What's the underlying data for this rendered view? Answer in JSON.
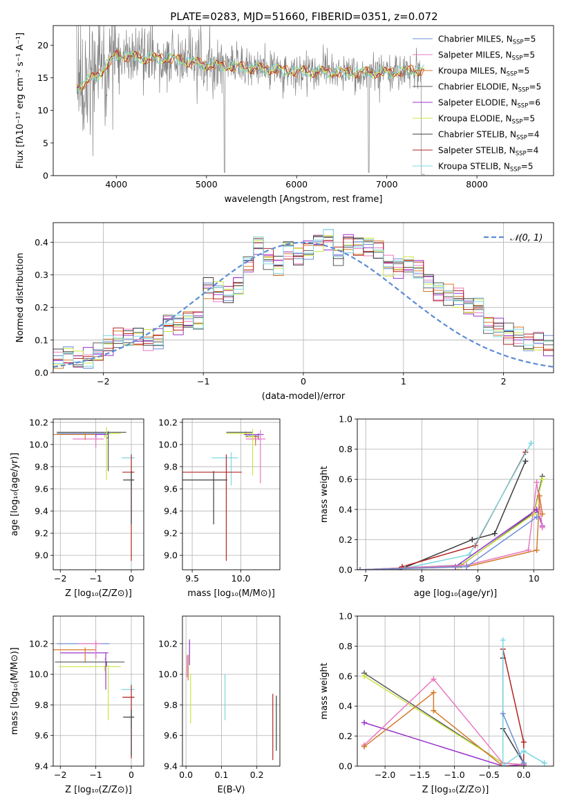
{
  "title": "PLATE=0283, MJD=51660, FIBERID=0351, z=0.072",
  "colors": {
    "chabrier_miles": "#6b8ed6",
    "salpeter_miles": "#e878c0",
    "kroupa_miles": "#d47a2a",
    "chabrier_elodie": "#5a5a5a",
    "salpeter_elodie": "#9932cc",
    "kroupa_elodie": "#c8e640",
    "chabrier_stelib": "#3c3c3c",
    "salpeter_stelib": "#b22222",
    "kroupa_stelib": "#7ad8e0",
    "data_grey": "#808080",
    "normal_curve": "#5b8bd6"
  },
  "chart_data": [
    {
      "id": "spectrum",
      "type": "line",
      "xlabel": "wavelength [Angstrom, rest frame]",
      "ylabel": "Flux [fλ10⁻¹⁷ erg cm⁻² s⁻¹ A⁻¹]",
      "xlim": [
        3300,
        8850
      ],
      "ylim": [
        0,
        23
      ],
      "xticks": [
        "4000",
        "5000",
        "6000",
        "7000",
        "8000"
      ],
      "yticks": [
        "0",
        "5",
        "10",
        "15",
        "20"
      ],
      "legend": [
        "Chabrier MILES, N_SSP=5",
        "Salpeter MILES, N_SSP=5",
        "Kroupa MILES, N_SSP=5",
        "Chabrier ELODIE, N_SSP=5",
        "Salpeter ELODIE, N_SSP=6",
        "Kroupa ELODIE, N_SSP=5",
        "Chabrier STELIB, N_SSP=4",
        "Salpeter STELIB, N_SSP=4",
        "Kroupa STELIB, N_SSP=5"
      ],
      "legend_placement": "right",
      "data_range": [
        3560,
        7420
      ],
      "model_trend": [
        [
          3560,
          13.5
        ],
        [
          3800,
          15.5
        ],
        [
          4000,
          18.5
        ],
        [
          4300,
          18
        ],
        [
          4600,
          18
        ],
        [
          5000,
          17
        ],
        [
          5500,
          16.5
        ],
        [
          6000,
          16
        ],
        [
          6500,
          15.8
        ],
        [
          7000,
          15.8
        ],
        [
          7400,
          16.2
        ]
      ]
    },
    {
      "id": "residuals",
      "type": "bar",
      "xlabel": "(data-model)/error",
      "ylabel": "Normed distribution",
      "xlim": [
        -2.5,
        2.5
      ],
      "ylim": [
        0,
        0.46
      ],
      "xticks": [
        "−2",
        "−1",
        "0",
        "1",
        "2"
      ],
      "yticks": [
        "0.0",
        "0.1",
        "0.2",
        "0.3",
        "0.4"
      ],
      "legend": [
        "𝒩(0, 1)"
      ],
      "legend_placement": "top-right",
      "bin_width": 0.1,
      "base_hist": [
        0.04,
        0.05,
        0.04,
        0.045,
        0.06,
        0.08,
        0.105,
        0.105,
        0.11,
        0.1,
        0.105,
        0.155,
        0.145,
        0.16,
        0.16,
        0.26,
        0.25,
        0.245,
        0.27,
        0.33,
        0.39,
        0.35,
        0.33,
        0.38,
        0.36,
        0.38,
        0.4,
        0.41,
        0.36,
        0.4,
        0.39,
        0.39,
        0.38,
        0.33,
        0.32,
        0.33,
        0.32,
        0.28,
        0.25,
        0.24,
        0.23,
        0.2,
        0.2,
        0.15,
        0.14,
        0.12,
        0.11,
        0.09,
        0.095,
        0.08
      ]
    },
    {
      "id": "age-vs-Z",
      "type": "scatter",
      "xlabel": "Z [log₁₀(Z/Z⊙)]",
      "ylabel": "age  [log₁₀(age/yr)]",
      "xlim": [
        -2.2,
        0.35
      ],
      "ylim": [
        8.87,
        10.23
      ],
      "xticks": [
        "−2",
        "−1",
        "0"
      ],
      "yticks": [
        "9.0",
        "9.2",
        "9.4",
        "9.6",
        "9.8",
        "10.0",
        "10.2"
      ],
      "points": [
        {
          "x": -0.65,
          "xerr": 1.45,
          "y": 10.11,
          "yerr": 0.04,
          "c": "chabrier_elodie"
        },
        {
          "x": -0.75,
          "xerr": 1.3,
          "y": 10.1,
          "yerr": 0.04,
          "c": "kroupa_elodie"
        },
        {
          "x": -1.0,
          "xerr": 1.1,
          "y": 10.1,
          "yerr": 0.03,
          "c": "chabrier_miles"
        },
        {
          "x": -1.0,
          "xerr": 1.0,
          "y": 10.09,
          "yerr": 0.05,
          "c": "salpeter_elodie"
        },
        {
          "x": -1.3,
          "xerr": 0.9,
          "y": 10.09,
          "yerr": 0.05,
          "c": "kroupa_miles"
        },
        {
          "x": -1.0,
          "xerr": 0.65,
          "y": 10.05,
          "yerr": 0.08,
          "c": "salpeter_miles"
        },
        {
          "x": -0.7,
          "xerr": 0.05,
          "y": 10.08,
          "yerr": 0.4,
          "c": "kroupa_elodie"
        },
        {
          "x": -0.65,
          "xerr": 0.05,
          "y": 10.06,
          "yerr": 0.3,
          "c": "chabrier_elodie"
        },
        {
          "x": 0.0,
          "xerr": 0.28,
          "y": 9.88,
          "yerr": 0.25,
          "c": "kroupa_stelib"
        },
        {
          "x": 0.0,
          "xerr": 0.25,
          "y": 9.75,
          "yerr": 0.8,
          "c": "salpeter_stelib"
        },
        {
          "x": 0.0,
          "xerr": 0.23,
          "y": 9.68,
          "yerr": 0.4,
          "c": "chabrier_stelib"
        }
      ]
    },
    {
      "id": "age-vs-mass",
      "type": "scatter",
      "xlabel": "mass [log₁₀(M/M⊙)]",
      "ylabel": "",
      "xlim": [
        9.4,
        10.4
      ],
      "ylim": [
        8.87,
        10.23
      ],
      "xticks": [
        "9.5",
        "10.0"
      ],
      "yticks": [
        "9.0",
        "9.2",
        "9.4",
        "9.6",
        "9.8",
        "10.0",
        "10.2"
      ],
      "points": [
        {
          "x": 10.05,
          "xerr": 0.2,
          "y": 10.11,
          "yerr": 0.03,
          "c": "chabrier_elodie"
        },
        {
          "x": 10.05,
          "xerr": 0.2,
          "y": 10.1,
          "yerr": 0.03,
          "c": "kroupa_elodie"
        },
        {
          "x": 10.18,
          "xerr": 0.15,
          "y": 10.09,
          "yerr": 0.05,
          "c": "salpeter_elodie"
        },
        {
          "x": 10.15,
          "xerr": 0.1,
          "y": 10.08,
          "yerr": 0.06,
          "c": "chabrier_miles"
        },
        {
          "x": 10.15,
          "xerr": 0.1,
          "y": 10.07,
          "yerr": 0.08,
          "c": "kroupa_miles"
        },
        {
          "x": 10.2,
          "xerr": 0.15,
          "y": 10.05,
          "yerr": 0.4,
          "c": "salpeter_miles"
        },
        {
          "x": 10.12,
          "xerr": 0.05,
          "y": 10.07,
          "yerr": 0.35,
          "c": "kroupa_elodie"
        },
        {
          "x": 9.9,
          "xerr": 0.2,
          "y": 9.88,
          "yerr": 0.25,
          "c": "kroupa_stelib"
        },
        {
          "x": 9.85,
          "xerr": 0.45,
          "y": 9.75,
          "yerr": 0.8,
          "c": "salpeter_stelib"
        },
        {
          "x": 9.72,
          "xerr": 0.4,
          "y": 9.68,
          "yerr": 0.4,
          "c": "chabrier_stelib"
        }
      ]
    },
    {
      "id": "massweight-vs-age",
      "type": "line",
      "xlabel": "age  [log₁₀(age/yr)]",
      "ylabel": "mass weight",
      "xlim": [
        6.85,
        10.35
      ],
      "ylim": [
        0,
        1
      ],
      "xticks": [
        "7",
        "8",
        "9",
        "10"
      ],
      "yticks": [
        "0.0",
        "0.2",
        "0.4",
        "0.6",
        "0.8",
        "1.0"
      ],
      "series": [
        {
          "c": "chabrier_stelib",
          "x": [
            7.6,
            8.9,
            9.3,
            9.85
          ],
          "y": [
            0.0,
            0.2,
            0.24,
            0.72
          ]
        },
        {
          "c": "salpeter_stelib",
          "x": [
            7.65,
            8.95,
            9.85
          ],
          "y": [
            0.02,
            0.16,
            0.78
          ]
        },
        {
          "c": "kroupa_stelib",
          "x": [
            7.7,
            8.85,
            9.95
          ],
          "y": [
            0.01,
            0.1,
            0.84
          ]
        },
        {
          "c": "chabrier_elodie",
          "x": [
            6.9,
            8.7,
            10.0,
            10.15
          ],
          "y": [
            0.0,
            0.03,
            0.38,
            0.62
          ]
        },
        {
          "c": "kroupa_elodie",
          "x": [
            6.9,
            8.65,
            10.0,
            10.15
          ],
          "y": [
            0.0,
            0.02,
            0.37,
            0.6
          ]
        },
        {
          "c": "salpeter_elodie",
          "x": [
            6.9,
            8.6,
            10.05,
            10.15
          ],
          "y": [
            0.0,
            0.02,
            0.4,
            0.29
          ]
        },
        {
          "c": "salpeter_miles",
          "x": [
            6.9,
            8.8,
            9.9,
            10.05,
            10.15
          ],
          "y": [
            0.0,
            0.03,
            0.13,
            0.58,
            0.28
          ]
        },
        {
          "c": "kroupa_miles",
          "x": [
            6.9,
            8.8,
            10.05,
            10.1,
            10.15
          ],
          "y": [
            0.0,
            0.02,
            0.13,
            0.49,
            0.37
          ]
        },
        {
          "c": "chabrier_miles",
          "x": [
            6.9,
            8.8,
            10.05
          ],
          "y": [
            0.0,
            0.02,
            0.35
          ]
        }
      ]
    },
    {
      "id": "mass-vs-Z",
      "type": "scatter",
      "xlabel": "Z [log₁₀(Z/Z⊙)]",
      "ylabel": "mass [log₁₀(M/M⊙)]",
      "xlim": [
        -2.2,
        0.35
      ],
      "ylim": [
        9.4,
        10.38
      ],
      "xticks": [
        "−2",
        "−1",
        "0"
      ],
      "yticks": [
        "9.4",
        "9.6",
        "9.8",
        "10.0",
        "10.2"
      ],
      "points": [
        {
          "x": -1.0,
          "xerr": 1.1,
          "y": 10.2,
          "yerr": 0.03,
          "c": "chabrier_miles"
        },
        {
          "x": -1.0,
          "xerr": 1.0,
          "y": 10.14,
          "yerr": 0.03,
          "c": "salpeter_elodie"
        },
        {
          "x": -1.3,
          "xerr": 0.9,
          "y": 10.16,
          "yerr": 0.08,
          "c": "kroupa_miles"
        },
        {
          "x": -0.7,
          "xerr": 1.45,
          "y": 10.08,
          "yerr": 0.03,
          "c": "chabrier_elodie"
        },
        {
          "x": -0.75,
          "xerr": 1.3,
          "y": 10.05,
          "yerr": 0.03,
          "c": "kroupa_elodie"
        },
        {
          "x": -1.0,
          "xerr": 0.5,
          "y": 10.2,
          "yerr": 0.1,
          "c": "salpeter_miles"
        },
        {
          "x": -0.72,
          "xerr": 0.03,
          "y": 10.1,
          "yerr": 0.2,
          "c": "salpeter_elodie"
        },
        {
          "x": -0.65,
          "xerr": 0.03,
          "y": 10.0,
          "yerr": 0.3,
          "c": "kroupa_elodie"
        },
        {
          "x": 0.0,
          "xerr": 0.28,
          "y": 9.9,
          "yerr": 0.25,
          "c": "kroupa_stelib"
        },
        {
          "x": 0.0,
          "xerr": 0.25,
          "y": 9.85,
          "yerr": 0.4,
          "c": "salpeter_stelib"
        },
        {
          "x": 0.0,
          "xerr": 0.23,
          "y": 9.72,
          "yerr": 0.25,
          "c": "chabrier_stelib"
        }
      ]
    },
    {
      "id": "mass-vs-EBV",
      "type": "scatter",
      "xlabel": "E(B-V)",
      "ylabel": "",
      "xlim": [
        -0.01,
        0.265
      ],
      "ylim": [
        9.4,
        10.38
      ],
      "xticks": [
        "0.0",
        "0.1",
        "0.2"
      ],
      "yticks": [
        "9.4",
        "9.6",
        "9.8",
        "10.0",
        "10.2"
      ],
      "points": [
        {
          "x": 0.003,
          "y": 10.1,
          "yerr": 0.12,
          "c": "salpeter_miles"
        },
        {
          "x": 0.006,
          "y": 10.1,
          "yerr": 0.14,
          "c": "kroupa_miles"
        },
        {
          "x": 0.01,
          "y": 10.2,
          "yerr": 0.14,
          "c": "salpeter_elodie"
        },
        {
          "x": 0.013,
          "y": 9.95,
          "yerr": 0.27,
          "c": "kroupa_elodie"
        },
        {
          "x": 0.11,
          "y": 9.95,
          "yerr": 0.25,
          "c": "kroupa_stelib"
        },
        {
          "x": 0.245,
          "y": 9.8,
          "yerr": 0.36,
          "c": "salpeter_stelib"
        },
        {
          "x": 0.255,
          "y": 9.8,
          "yerr": 0.3,
          "c": "chabrier_stelib"
        }
      ]
    },
    {
      "id": "massweight-vs-Z",
      "type": "line",
      "xlabel": "Z [log₁₀(Z/Z⊙)]",
      "ylabel": "mass weight",
      "xlim": [
        -2.4,
        0.43
      ],
      "ylim": [
        0,
        1
      ],
      "xticks": [
        "−2.0",
        "−1.5",
        "−1.0",
        "−0.5",
        "0.0"
      ],
      "yticks": [
        "0.0",
        "0.2",
        "0.4",
        "0.6",
        "0.8",
        "1.0"
      ],
      "series": [
        {
          "c": "chabrier_elodie",
          "x": [
            -2.3,
            -0.3,
            0.0
          ],
          "y": [
            0.62,
            0.02,
            0.01
          ]
        },
        {
          "c": "kroupa_elodie",
          "x": [
            -2.3,
            -0.3,
            0.0
          ],
          "y": [
            0.6,
            0.02,
            0.01
          ]
        },
        {
          "c": "salpeter_elodie",
          "x": [
            -2.3,
            -0.3,
            0.0
          ],
          "y": [
            0.29,
            0.0,
            0.01
          ]
        },
        {
          "c": "salpeter_miles",
          "x": [
            -2.3,
            -1.3,
            -0.3,
            0.0
          ],
          "y": [
            0.14,
            0.58,
            0.02,
            0.01
          ]
        },
        {
          "c": "kroupa_miles",
          "x": [
            -2.3,
            -1.3,
            -1.3,
            -0.3,
            0.0
          ],
          "y": [
            0.13,
            0.49,
            0.37,
            0.0,
            0.0
          ]
        },
        {
          "c": "chabrier_stelib",
          "x": [
            -0.3,
            -0.3,
            0.0,
            0.0
          ],
          "y": [
            0.72,
            0.25,
            0.02,
            0.0
          ]
        },
        {
          "c": "salpeter_stelib",
          "x": [
            -0.3,
            0.0,
            0.0
          ],
          "y": [
            0.78,
            0.16,
            0.02
          ]
        },
        {
          "c": "kroupa_stelib",
          "x": [
            -0.3,
            -0.3,
            0.0,
            0.3
          ],
          "y": [
            0.84,
            0.0,
            0.1,
            0.02
          ]
        },
        {
          "c": "chabrier_miles",
          "x": [
            -0.3,
            0.0
          ],
          "y": [
            0.35,
            0.02
          ]
        }
      ]
    }
  ]
}
